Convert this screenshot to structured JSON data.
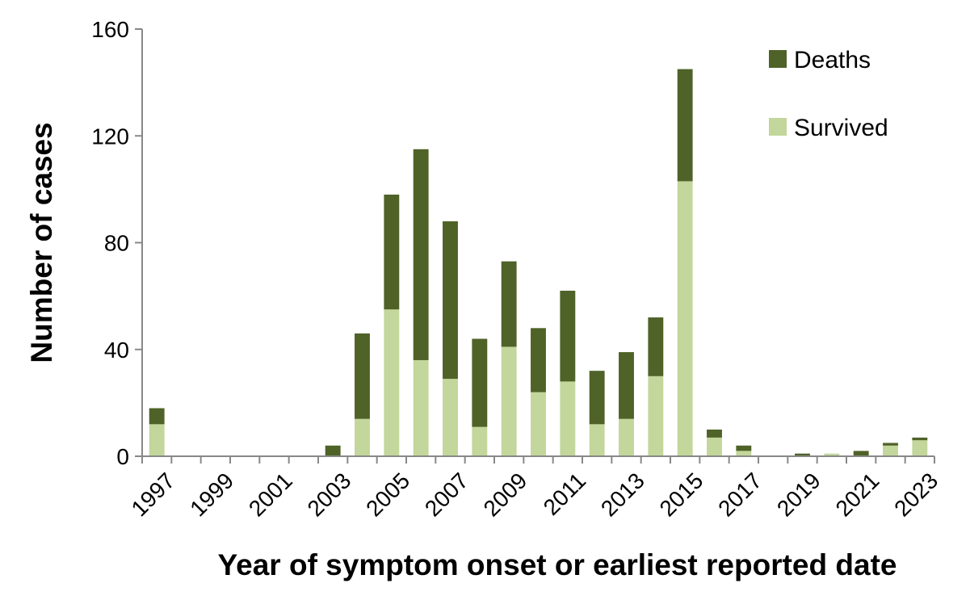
{
  "chart_data": {
    "type": "bar",
    "stacked": true,
    "categories": [
      "1997",
      "1998",
      "1999",
      "2000",
      "2001",
      "2002",
      "2003",
      "2004",
      "2005",
      "2006",
      "2007",
      "2008",
      "2009",
      "2010",
      "2011",
      "2012",
      "2013",
      "2014",
      "2015",
      "2016",
      "2017",
      "2018",
      "2019",
      "2020",
      "2021",
      "2022",
      "2023"
    ],
    "x_tick_labels": [
      "1997",
      "1999",
      "2001",
      "2003",
      "2005",
      "2007",
      "2009",
      "2011",
      "2013",
      "2015",
      "2017",
      "2019",
      "2021",
      "2023"
    ],
    "series": [
      {
        "name": "Survived",
        "color": "#c3d69b",
        "values": [
          12,
          0,
          0,
          0,
          0,
          0,
          0,
          14,
          55,
          36,
          29,
          11,
          41,
          24,
          28,
          12,
          14,
          30,
          103,
          7,
          2,
          0,
          0,
          1,
          0,
          4,
          6
        ]
      },
      {
        "name": "Deaths",
        "color": "#4f6228",
        "values": [
          6,
          0,
          0,
          0,
          0,
          0,
          4,
          32,
          43,
          79,
          59,
          33,
          32,
          24,
          34,
          20,
          25,
          22,
          42,
          3,
          2,
          0,
          1,
          0,
          2,
          1,
          1
        ]
      }
    ],
    "legend_order": [
      "Deaths",
      "Survived"
    ],
    "legend_position": "top-right",
    "xlabel": "Year of symptom onset or earliest reported date",
    "ylabel": "Number of cases",
    "ylim": [
      0,
      160
    ],
    "yticks": [
      0,
      40,
      80,
      120,
      160
    ],
    "grid": false
  }
}
